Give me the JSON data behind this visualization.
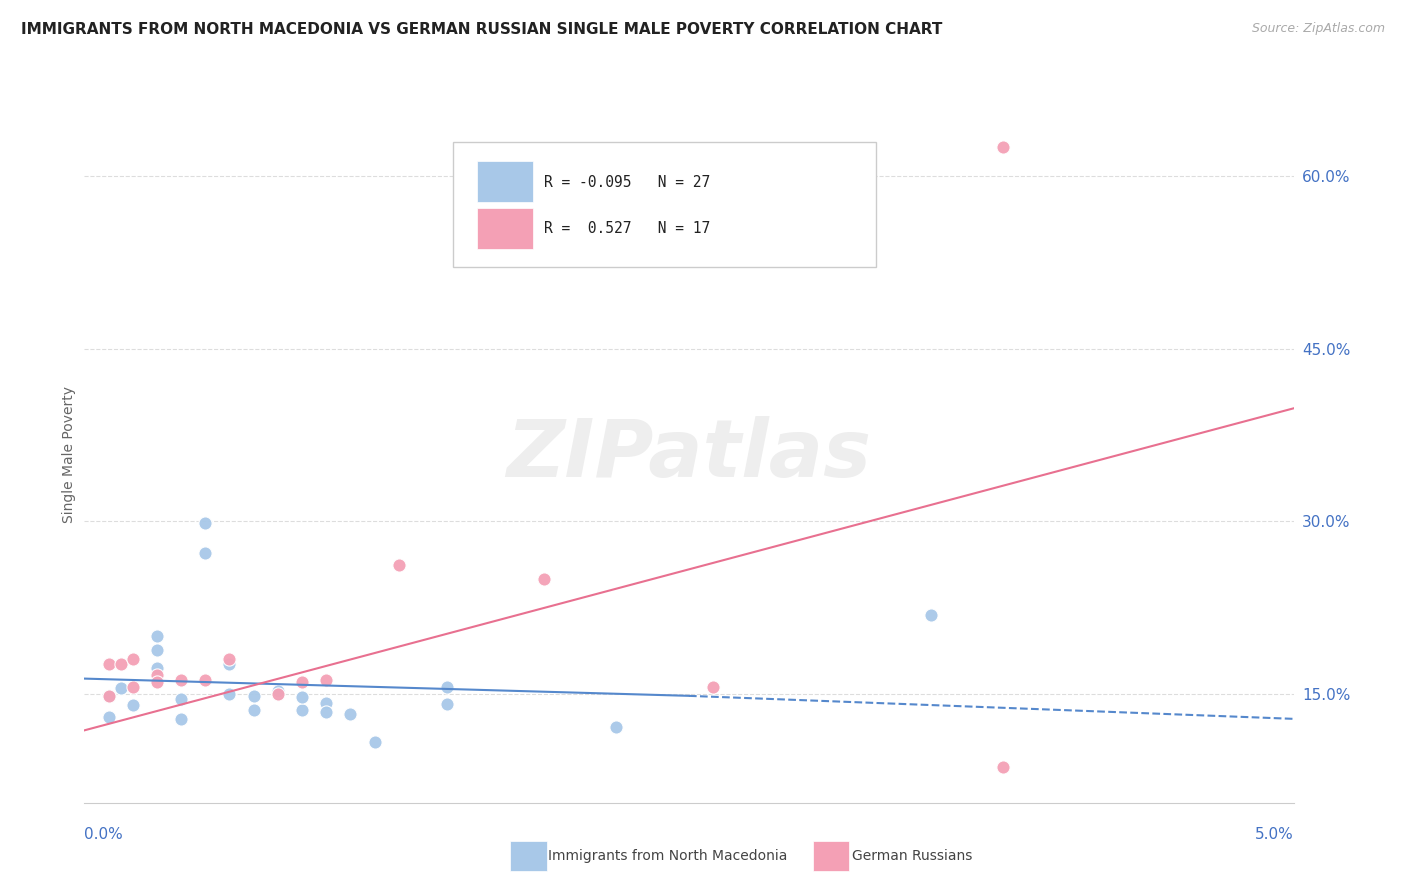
{
  "title": "IMMIGRANTS FROM NORTH MACEDONIA VS GERMAN RUSSIAN SINGLE MALE POVERTY CORRELATION CHART",
  "source": "Source: ZipAtlas.com",
  "ylabel": "Single Male Poverty",
  "y_tick_labels": [
    "15.0%",
    "30.0%",
    "45.0%",
    "60.0%"
  ],
  "y_tick_values": [
    0.15,
    0.3,
    0.45,
    0.6
  ],
  "x_range": [
    0.0,
    0.05
  ],
  "y_range": [
    0.055,
    0.66
  ],
  "blue_scatter": [
    [
      0.001,
      0.148
    ],
    [
      0.001,
      0.13
    ],
    [
      0.0015,
      0.155
    ],
    [
      0.002,
      0.14
    ],
    [
      0.003,
      0.172
    ],
    [
      0.003,
      0.188
    ],
    [
      0.003,
      0.2
    ],
    [
      0.004,
      0.145
    ],
    [
      0.004,
      0.128
    ],
    [
      0.005,
      0.272
    ],
    [
      0.005,
      0.298
    ],
    [
      0.006,
      0.176
    ],
    [
      0.006,
      0.15
    ],
    [
      0.007,
      0.148
    ],
    [
      0.007,
      0.136
    ],
    [
      0.008,
      0.15
    ],
    [
      0.008,
      0.152
    ],
    [
      0.009,
      0.136
    ],
    [
      0.009,
      0.147
    ],
    [
      0.01,
      0.142
    ],
    [
      0.01,
      0.134
    ],
    [
      0.011,
      0.132
    ],
    [
      0.012,
      0.108
    ],
    [
      0.015,
      0.156
    ],
    [
      0.015,
      0.141
    ],
    [
      0.022,
      0.121
    ],
    [
      0.035,
      0.218
    ]
  ],
  "pink_scatter": [
    [
      0.001,
      0.148
    ],
    [
      0.001,
      0.176
    ],
    [
      0.0015,
      0.176
    ],
    [
      0.002,
      0.18
    ],
    [
      0.002,
      0.156
    ],
    [
      0.003,
      0.166
    ],
    [
      0.003,
      0.16
    ],
    [
      0.004,
      0.162
    ],
    [
      0.005,
      0.162
    ],
    [
      0.006,
      0.18
    ],
    [
      0.008,
      0.15
    ],
    [
      0.009,
      0.16
    ],
    [
      0.01,
      0.162
    ],
    [
      0.013,
      0.262
    ],
    [
      0.019,
      0.25
    ],
    [
      0.026,
      0.156
    ],
    [
      0.038,
      0.086
    ]
  ],
  "pink_outlier": [
    0.038,
    0.625
  ],
  "blue_solid_line_x": [
    0.0,
    0.025
  ],
  "blue_solid_line_y": [
    0.163,
    0.148
  ],
  "blue_dashed_line_x": [
    0.025,
    0.05
  ],
  "blue_dashed_line_y": [
    0.148,
    0.128
  ],
  "pink_line_x": [
    0.0,
    0.05
  ],
  "pink_line_y": [
    0.118,
    0.398
  ],
  "blue_color": "#a8c8e8",
  "pink_color": "#f4a0b5",
  "blue_line_color": "#5588cc",
  "pink_line_color": "#e87090",
  "title_color": "#222222",
  "source_color": "#aaaaaa",
  "axis_label_color": "#4472c4",
  "grid_color": "#dddddd",
  "watermark_text": "ZIPatlas",
  "watermark_color": "#eeeeee",
  "legend_blue_text": "R = -0.095   N = 27",
  "legend_pink_text": "R =  0.527   N = 17",
  "bottom_legend_blue": "Immigrants from North Macedonia",
  "bottom_legend_pink": "German Russians"
}
